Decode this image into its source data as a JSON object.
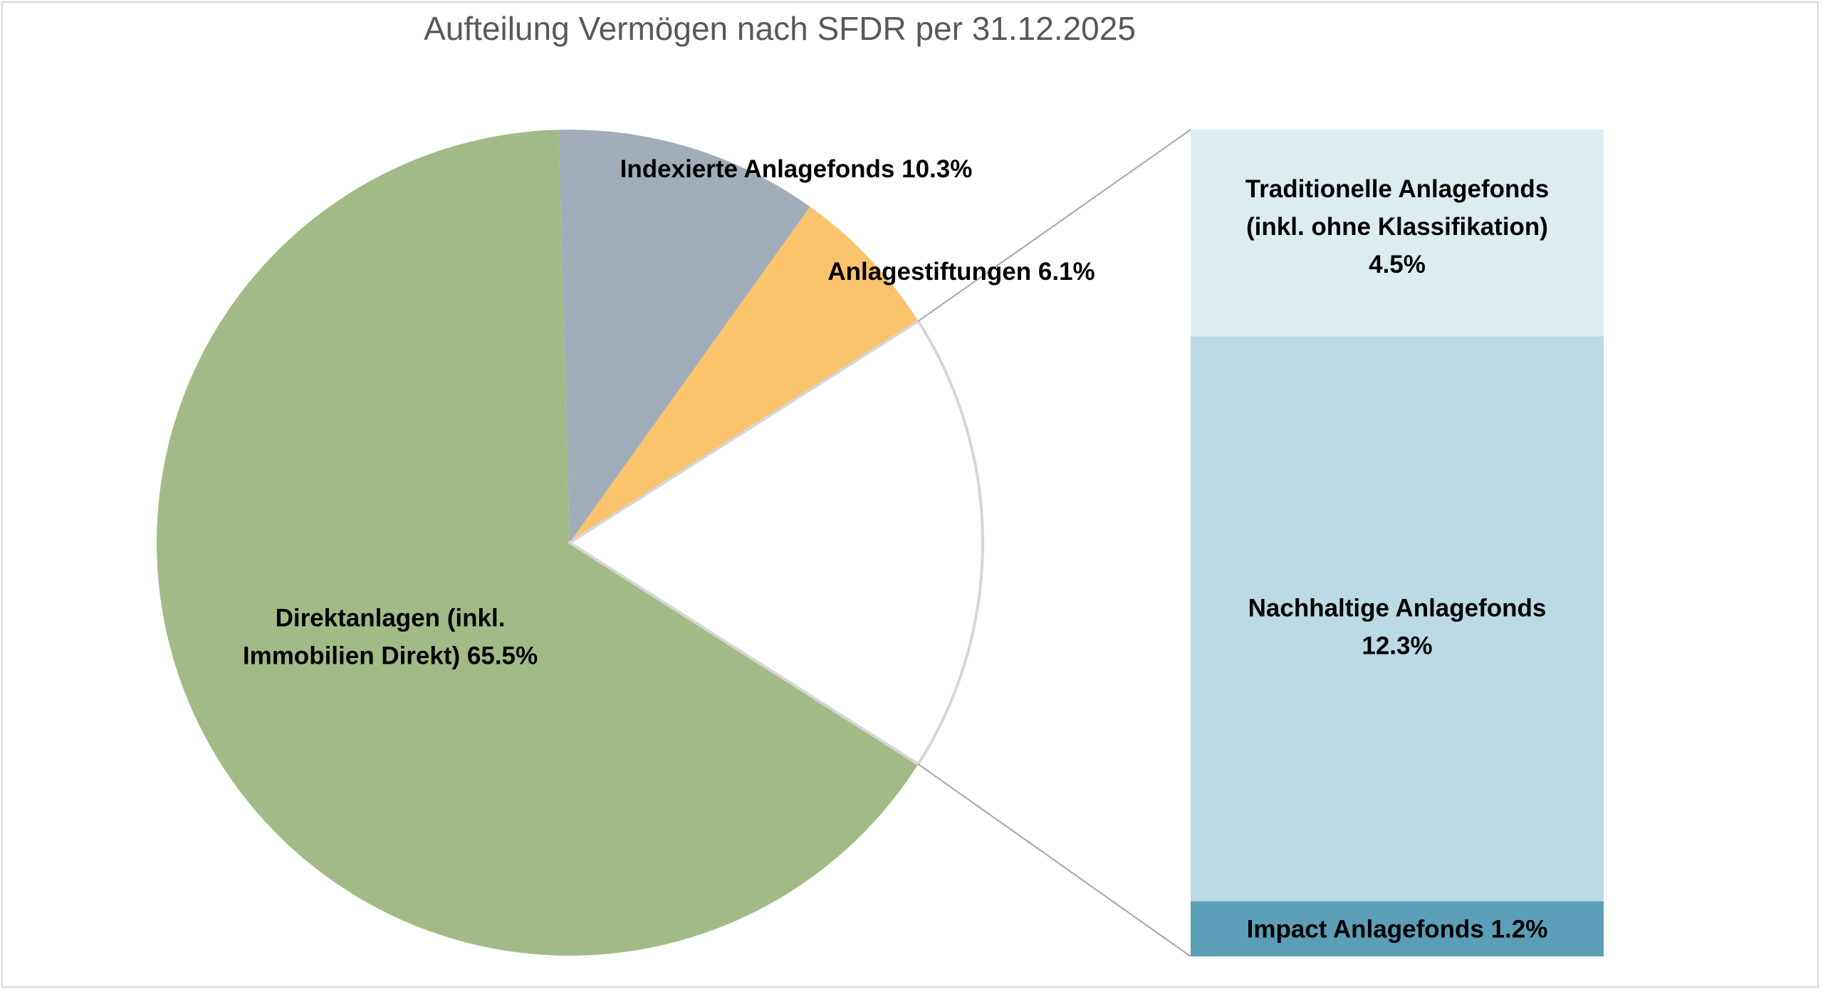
{
  "chart_data": {
    "type": "pie",
    "subtype": "pie-of-bar",
    "title": "Aufteilung Vermögen nach SFDR per 31.12.2025",
    "unit": "%",
    "slices": [
      {
        "label_lines": [
          "Direktanlagen (inkl.",
          "Immobilien Direkt) 65.5%"
        ],
        "value": 65.5,
        "color": "#a2bb86"
      },
      {
        "label_lines": [
          "Indexierte Anlagefonds  10.3%"
        ],
        "value": 10.3,
        "color": "#a1adb8"
      },
      {
        "label_lines": [
          "Anlagestiftungen  6.1%"
        ],
        "value": 6.1,
        "color": "#fac36c"
      }
    ],
    "breakout": {
      "total": 18.0,
      "segments": [
        {
          "label_lines": [
            "Traditionelle Anlagefonds",
            "(inkl. ohne Klassifikation)",
            "4.5%"
          ],
          "value": 4.5,
          "color": "#dcecf1"
        },
        {
          "label_lines": [
            "Nachhaltige Anlagefonds",
            "12.3%"
          ],
          "value": 12.3,
          "color": "#bbdae3"
        },
        {
          "label_lines": [
            "Impact Anlagefonds  1.2%"
          ],
          "value": 1.2,
          "color": "#5a9fb7"
        }
      ]
    },
    "legend": "none",
    "grid": false
  }
}
